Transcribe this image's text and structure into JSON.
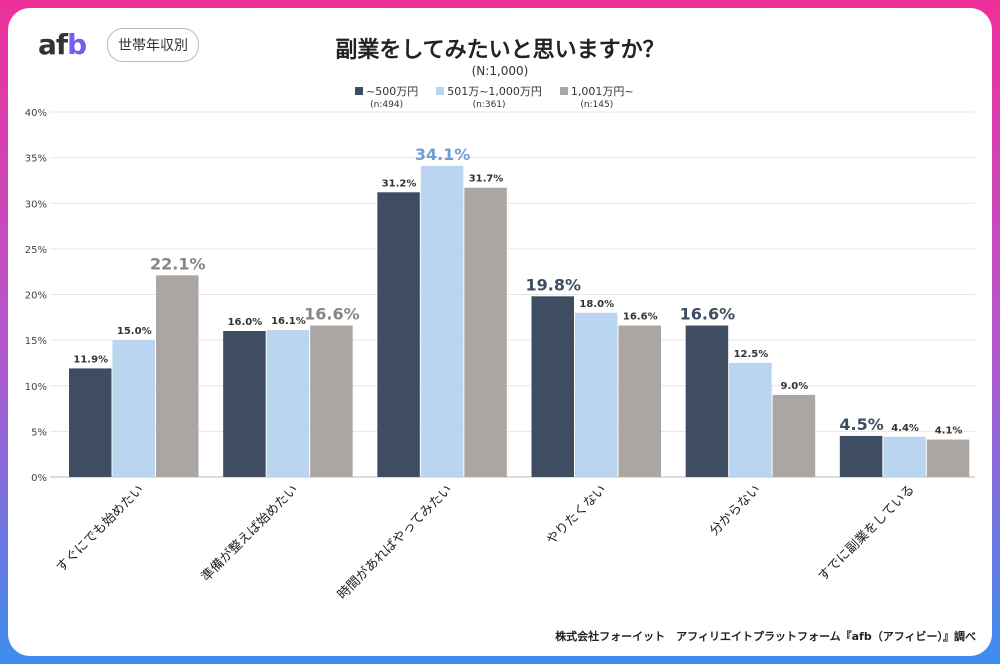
{
  "header": {
    "logo": "afb",
    "tag": "世帯年収別",
    "source": "株式会社フォーイット　アフィリエイトプラットフォーム『afb（アフィビー）』調べ"
  },
  "chart_data": {
    "type": "bar",
    "title": "副業をしてみたいと思いますか？",
    "subtitle": "(N:1,000)",
    "categories": [
      "すぐにでも始めたい",
      "準備が整えば始めたい",
      "時間があればやってみたい",
      "やりたくない",
      "分からない",
      "すでに副業をしている"
    ],
    "series": [
      {
        "name": "~500万円",
        "n": "(n:494)",
        "color": "#3f4d63",
        "values": [
          11.9,
          16.0,
          31.2,
          19.8,
          16.6,
          4.5
        ]
      },
      {
        "name": "501万~1,000万円",
        "n": "(n:361)",
        "color": "#b9d5ef",
        "values": [
          15.0,
          16.1,
          34.1,
          18.0,
          12.5,
          4.4
        ]
      },
      {
        "name": "1,001万円~",
        "n": "(n:145)",
        "color": "#aca6a3",
        "values": [
          22.1,
          16.6,
          31.7,
          16.6,
          9.0,
          4.1
        ]
      }
    ],
    "ylim": [
      0,
      40
    ],
    "yticks": [
      "0%",
      "5%",
      "10%",
      "15%",
      "20%",
      "25%",
      "30%",
      "35%",
      "40%"
    ],
    "highlight_colors": [
      "#3f4d63",
      "#6f9fd0",
      "#8a8482"
    ],
    "grid": true,
    "legend": "top"
  }
}
